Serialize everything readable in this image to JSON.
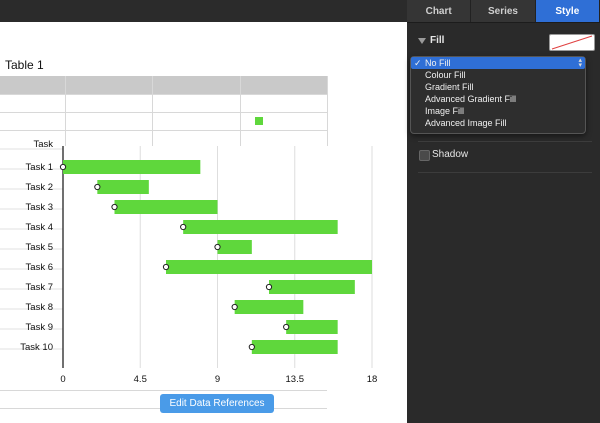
{
  "sheet": {
    "title": "Table 1"
  },
  "chart_data": {
    "type": "bar",
    "categories": [
      "Task 1",
      "Task 2",
      "Task 3",
      "Task 4",
      "Task 5",
      "Task 6",
      "Task 7",
      "Task 8",
      "Task 9",
      "Task 10"
    ],
    "series": [
      {
        "starts": [
          0,
          2,
          3,
          7,
          9,
          6,
          12,
          10,
          13,
          11
        ]
      },
      {
        "values": [
          8,
          3,
          6,
          9,
          2,
          12,
          5,
          4,
          3,
          5
        ]
      }
    ],
    "axis_header": "Task",
    "xlim": [
      0,
      18
    ],
    "xticks": [
      "0",
      "4.5",
      "9",
      "13.5",
      "18"
    ],
    "bar_color": "#5fd73c",
    "marker": "open-circle"
  },
  "edit_button": {
    "label": "Edit Data References"
  },
  "panel": {
    "tabs": [
      {
        "label": "Chart"
      },
      {
        "label": "Series"
      },
      {
        "label": "Style"
      }
    ],
    "fill": {
      "label": "Fill",
      "swatch": "no-fill"
    },
    "dropdown": {
      "options": [
        "No Fill",
        "Colour Fill",
        "Gradient Fill",
        "Advanced Gradient Fill",
        "Image Fill",
        "Advanced Image Fill"
      ],
      "selected": "No Fill"
    },
    "shadow": {
      "label": "Shadow",
      "checked": false
    }
  },
  "colors": {
    "accent": "#2f6fd6",
    "button": "#4a9be8",
    "bar": "#5fd73c"
  }
}
